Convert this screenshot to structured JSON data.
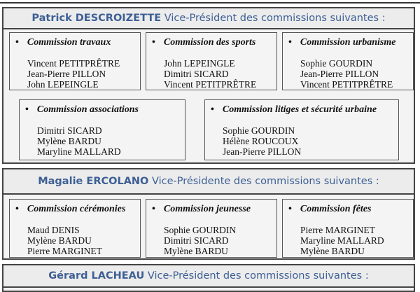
{
  "sections": [
    {
      "name": "Patrick DESCROIZETTE",
      "role": "Vice-Président des commissions suivantes :",
      "commissions": [
        {
          "title": "Commission travaux",
          "members": [
            "Vincent PETITPRÊTRE",
            "Jean-Pierre PILLON",
            "John LEPEINGLE"
          ]
        },
        {
          "title": "Commission des sports",
          "members": [
            "John LEPEINGLE",
            "Dimitri SICARD",
            "Vincent PETITPRÊTRE"
          ]
        },
        {
          "title": "Commission urbanisme",
          "members": [
            "Sophie GOURDIN",
            "Jean-Pierre PILLON",
            "Vincent PETITPRÊTRE"
          ]
        },
        {
          "title": "Commission associations",
          "members": [
            "Dimitri SICARD",
            "Mylène BARDU",
            "Maryline MALLARD"
          ]
        },
        {
          "title": "Commission litiges et sécurité urbaine",
          "members": [
            "Sophie GOURDIN",
            "Hélène ROUCOUX",
            "Jean-Pierre PILLON"
          ]
        }
      ]
    },
    {
      "name": "Magalie ERCOLANO",
      "role": "Vice-Présidente des commissions suivantes :",
      "commissions": [
        {
          "title": "Commission cérémonies",
          "members": [
            "Maud DENIS",
            "Mylène BARDU",
            "Pierre MARGINET"
          ]
        },
        {
          "title": "Commission jeunesse",
          "members": [
            "Sophie GOURDIN",
            "Dimitri SICARD",
            "Mylène BARDU"
          ]
        },
        {
          "title": "Commission fêtes",
          "members": [
            "Pierre MARGINET",
            "Maryline MALLARD",
            "Mylène BARDU"
          ]
        }
      ]
    },
    {
      "name": "Gérard LACHEAU",
      "role": "Vice-Président des commissions suivantes :",
      "commissions": []
    }
  ],
  "bullet": "•"
}
